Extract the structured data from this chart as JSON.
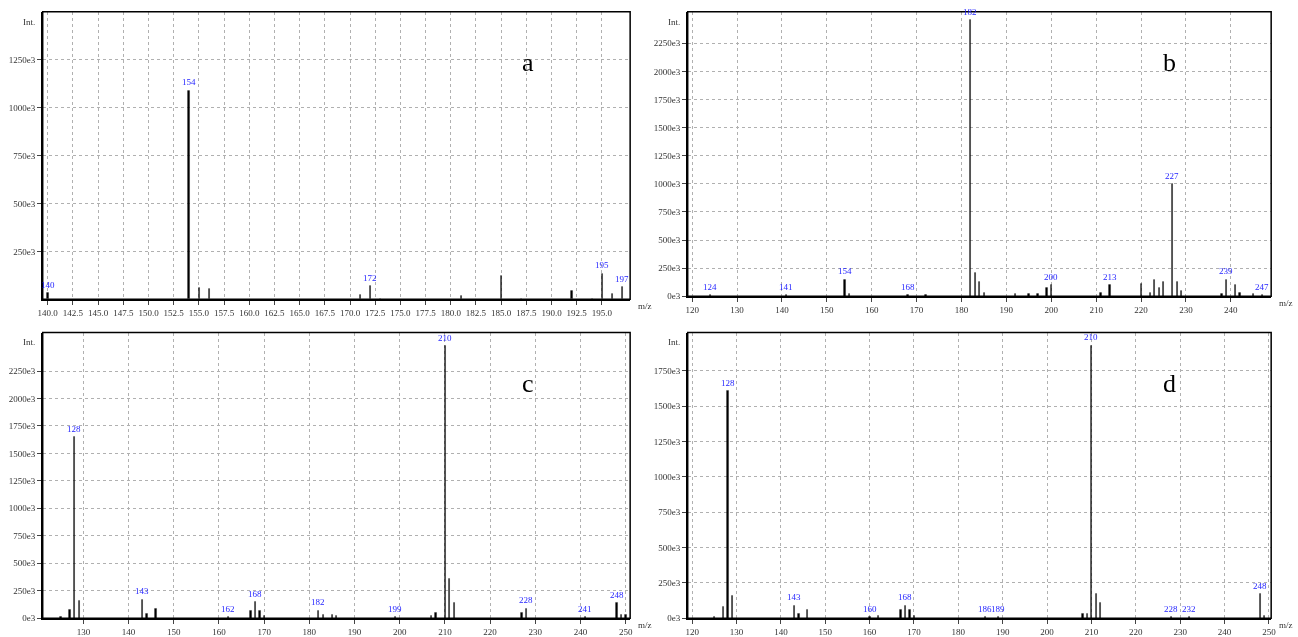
{
  "chart_data": [
    {
      "type": "bar",
      "title": "a",
      "xlabel": "m/z",
      "ylabel": "Int.",
      "grid": true,
      "xlim": [
        139.5,
        197.8
      ],
      "ylim": [
        0,
        1500000
      ],
      "xticks": [
        {
          "value": 140,
          "label": "140.0"
        },
        {
          "value": 142.5,
          "label": "142.5"
        },
        {
          "value": 145,
          "label": "145.0"
        },
        {
          "value": 147.5,
          "label": "147.5"
        },
        {
          "value": 150,
          "label": "150.0"
        },
        {
          "value": 152.5,
          "label": "152.5"
        },
        {
          "value": 155,
          "label": "155.0"
        },
        {
          "value": 157.5,
          "label": "157.5"
        },
        {
          "value": 160,
          "label": "160.0"
        },
        {
          "value": 162.5,
          "label": "162.5"
        },
        {
          "value": 165,
          "label": "165.0"
        },
        {
          "value": 167.5,
          "label": "167.5"
        },
        {
          "value": 170,
          "label": "170.0"
        },
        {
          "value": 172.5,
          "label": "172.5"
        },
        {
          "value": 175,
          "label": "175.0"
        },
        {
          "value": 177.5,
          "label": "177.5"
        },
        {
          "value": 180,
          "label": "180.0"
        },
        {
          "value": 182.5,
          "label": "182.5"
        },
        {
          "value": 185,
          "label": "185.0"
        },
        {
          "value": 187.5,
          "label": "187.5"
        },
        {
          "value": 190,
          "label": "190.0"
        },
        {
          "value": 192.5,
          "label": "192.5"
        },
        {
          "value": 195,
          "label": "195.0"
        }
      ],
      "yticks": [
        {
          "value": 250000,
          "label": "250e3"
        },
        {
          "value": 500000,
          "label": "500e3"
        },
        {
          "value": 750000,
          "label": "750e3"
        },
        {
          "value": 1000000,
          "label": "1000e3"
        },
        {
          "value": 1250000,
          "label": "1250e3"
        }
      ],
      "series": [
        {
          "color": "#000000",
          "x": [
            140,
            154,
            155,
            156,
            171,
            172,
            173,
            181,
            185,
            187,
            192,
            194,
            195,
            196,
            197
          ],
          "values": [
            35000,
            1090000,
            60000,
            55000,
            25000,
            70000,
            5000,
            20000,
            120000,
            5000,
            45000,
            5000,
            135000,
            30000,
            65000
          ]
        }
      ],
      "annotations": [
        {
          "text": "140",
          "x": 140,
          "y": 35000
        },
        {
          "text": "154",
          "x": 154,
          "y": 1090000
        },
        {
          "text": "172",
          "x": 172,
          "y": 70000
        },
        {
          "text": "195",
          "x": 195,
          "y": 135000
        },
        {
          "text": "197",
          "x": 197,
          "y": 65000
        }
      ]
    },
    {
      "type": "bar",
      "title": "b",
      "xlabel": "m/z",
      "ylabel": "Int.",
      "grid": true,
      "xlim": [
        119,
        249
      ],
      "ylim": [
        0,
        2530000
      ],
      "xticks": [
        120,
        130,
        140,
        150,
        160,
        170,
        180,
        190,
        200,
        210,
        220,
        230,
        240
      ],
      "yticks": [
        {
          "value": 0,
          "label": "0e3"
        },
        {
          "value": 250000,
          "label": "250e3"
        },
        {
          "value": 500000,
          "label": "500e3"
        },
        {
          "value": 750000,
          "label": "750e3"
        },
        {
          "value": 1000000,
          "label": "1000e3"
        },
        {
          "value": 1250000,
          "label": "1250e3"
        },
        {
          "value": 1500000,
          "label": "1500e3"
        },
        {
          "value": 1750000,
          "label": "1750e3"
        },
        {
          "value": 2000000,
          "label": "2000e3"
        },
        {
          "value": 2250000,
          "label": "2250e3"
        }
      ],
      "series": [
        {
          "color": "#000000",
          "x": [
            124,
            141,
            154,
            155,
            168,
            172,
            182,
            183,
            184,
            185,
            192,
            195,
            197,
            199,
            200,
            211,
            213,
            220,
            222,
            223,
            224,
            225,
            227,
            228,
            229,
            238,
            239,
            241,
            242,
            245,
            247
          ],
          "values": [
            10000,
            10000,
            150000,
            20000,
            10000,
            10000,
            2460000,
            210000,
            130000,
            30000,
            20000,
            20000,
            20000,
            80000,
            100000,
            30000,
            100000,
            110000,
            30000,
            150000,
            80000,
            130000,
            1000000,
            130000,
            50000,
            20000,
            150000,
            100000,
            30000,
            20000,
            10000
          ]
        }
      ],
      "annotations": [
        {
          "text": "124",
          "x": 124,
          "y": 10000
        },
        {
          "text": "141",
          "x": 141,
          "y": 10000
        },
        {
          "text": "154",
          "x": 154,
          "y": 150000
        },
        {
          "text": "168",
          "x": 168,
          "y": 10000
        },
        {
          "text": "182",
          "x": 182,
          "y": 2460000
        },
        {
          "text": "200",
          "x": 200,
          "y": 100000
        },
        {
          "text": "213",
          "x": 213,
          "y": 100000
        },
        {
          "text": "227",
          "x": 227,
          "y": 1000000
        },
        {
          "text": "239",
          "x": 239,
          "y": 150000
        },
        {
          "text": "247",
          "x": 247,
          "y": 10000
        }
      ]
    },
    {
      "type": "bar",
      "title": "c",
      "xlabel": "m/z",
      "ylabel": "Int.",
      "grid": true,
      "xlim": [
        121,
        251
      ],
      "ylim": [
        0,
        2600000
      ],
      "xticks": [
        130,
        140,
        150,
        160,
        170,
        180,
        190,
        200,
        210,
        220,
        230,
        240,
        250
      ],
      "yticks": [
        {
          "value": 0,
          "label": "0e3"
        },
        {
          "value": 250000,
          "label": "250e3"
        },
        {
          "value": 500000,
          "label": "500e3"
        },
        {
          "value": 750000,
          "label": "750e3"
        },
        {
          "value": 1000000,
          "label": "1000e3"
        },
        {
          "value": 1250000,
          "label": "1250e3"
        },
        {
          "value": 1500000,
          "label": "1500e3"
        },
        {
          "value": 1750000,
          "label": "1750e3"
        },
        {
          "value": 2000000,
          "label": "2000e3"
        },
        {
          "value": 2250000,
          "label": "2250e3"
        }
      ],
      "series": [
        {
          "color": "#000000",
          "x": [
            125,
            127,
            128,
            129,
            143,
            144,
            146,
            162,
            167,
            168,
            169,
            170,
            182,
            183,
            185,
            186,
            199,
            207,
            208,
            210,
            211,
            212,
            227,
            228,
            241,
            248,
            249,
            250
          ],
          "values": [
            10000,
            80000,
            1650000,
            160000,
            170000,
            40000,
            90000,
            10000,
            70000,
            150000,
            70000,
            20000,
            70000,
            30000,
            30000,
            20000,
            10000,
            20000,
            50000,
            2480000,
            360000,
            140000,
            50000,
            90000,
            10000,
            140000,
            30000,
            30000
          ]
        }
      ],
      "annotations": [
        {
          "text": "128",
          "x": 128,
          "y": 1650000
        },
        {
          "text": "143",
          "x": 143,
          "y": 170000
        },
        {
          "text": "162",
          "x": 162,
          "y": 10000
        },
        {
          "text": "168",
          "x": 168,
          "y": 150000
        },
        {
          "text": "182",
          "x": 182,
          "y": 70000
        },
        {
          "text": "199",
          "x": 199,
          "y": 10000
        },
        {
          "text": "210",
          "x": 210,
          "y": 2480000
        },
        {
          "text": "228",
          "x": 228,
          "y": 90000
        },
        {
          "text": "241",
          "x": 241,
          "y": 10000
        },
        {
          "text": "248",
          "x": 248,
          "y": 140000
        }
      ]
    },
    {
      "type": "bar",
      "title": "d",
      "xlabel": "m/z",
      "ylabel": "Int.",
      "grid": true,
      "xlim": [
        119,
        250.5
      ],
      "ylim": [
        0,
        2020000
      ],
      "xticks": [
        120,
        130,
        140,
        150,
        160,
        170,
        180,
        190,
        200,
        210,
        220,
        230,
        240,
        250
      ],
      "yticks": [
        {
          "value": 0,
          "label": "0e3"
        },
        {
          "value": 250000,
          "label": "250e3"
        },
        {
          "value": 500000,
          "label": "500e3"
        },
        {
          "value": 750000,
          "label": "750e3"
        },
        {
          "value": 1000000,
          "label": "1000e3"
        },
        {
          "value": 1250000,
          "label": "1250e3"
        },
        {
          "value": 1500000,
          "label": "1500e3"
        },
        {
          "value": 1750000,
          "label": "1750e3"
        }
      ],
      "series": [
        {
          "color": "#000000",
          "x": [
            125,
            127,
            128,
            129,
            143,
            144,
            146,
            160,
            162,
            167,
            168,
            169,
            170,
            186,
            189,
            208,
            209,
            210,
            211,
            212,
            228,
            232,
            248,
            249
          ],
          "values": [
            10000,
            80000,
            1610000,
            160000,
            90000,
            30000,
            60000,
            10000,
            20000,
            60000,
            90000,
            60000,
            20000,
            10000,
            10000,
            30000,
            30000,
            1930000,
            170000,
            110000,
            10000,
            10000,
            170000,
            20000
          ]
        }
      ],
      "annotations": [
        {
          "text": "128",
          "x": 128,
          "y": 1610000
        },
        {
          "text": "143",
          "x": 143,
          "y": 90000
        },
        {
          "text": "160",
          "x": 160,
          "y": 10000
        },
        {
          "text": "168",
          "x": 168,
          "y": 90000
        },
        {
          "text": "186",
          "x": 186,
          "y": 10000
        },
        {
          "text": "189",
          "x": 189,
          "y": 10000
        },
        {
          "text": "210",
          "x": 210,
          "y": 1930000
        },
        {
          "text": "228",
          "x": 228,
          "y": 10000
        },
        {
          "text": "232",
          "x": 232,
          "y": 10000
        },
        {
          "text": "248",
          "x": 248,
          "y": 170000
        }
      ]
    }
  ]
}
